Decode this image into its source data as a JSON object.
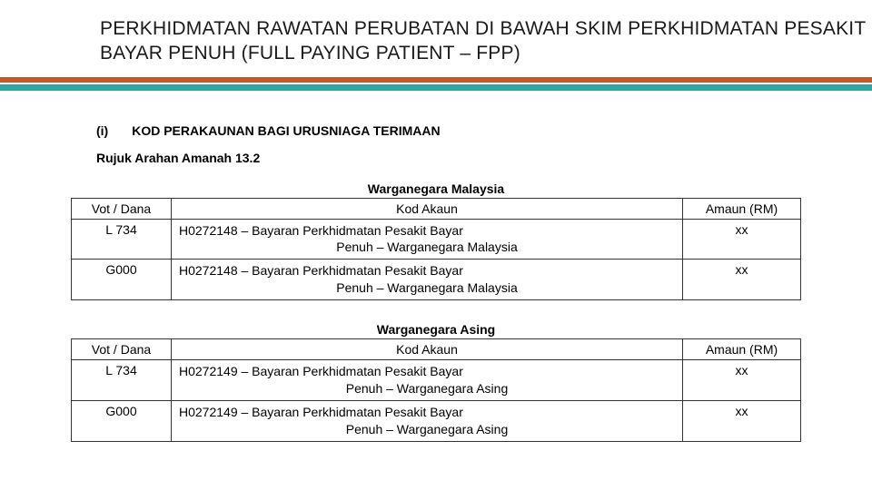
{
  "header": {
    "title": "PERKHIDMATAN RAWATAN PERUBATAN DI BAWAH SKIM PERKHIDMATAN PESAKIT BAYAR PENUH (FULL PAYING PATIENT – FPP)"
  },
  "colors": {
    "rule_orange": "#c05a2a",
    "rule_teal": "#2fa6a0",
    "text": "#000000",
    "border": "#333333",
    "background": "#ffffff"
  },
  "section": {
    "number": "(i)",
    "title": "KOD PERAKAUNAN BAGI URUSNIAGA TERIMAAN",
    "rujuk": "Rujuk Arahan Amanah 13.2"
  },
  "tables": [
    {
      "caption": "Warganegara Malaysia",
      "columns": [
        "Vot / Dana",
        "Kod Akaun",
        "Amaun (RM)"
      ],
      "rows": [
        {
          "vot": "L 734",
          "akaun_l1": "H0272148 – Bayaran Perkhidmatan Pesakit Bayar",
          "akaun_l2": "Penuh – Warganegara Malaysia",
          "amaun": "xx"
        },
        {
          "vot": "G000",
          "akaun_l1": "H0272148 – Bayaran Perkhidmatan Pesakit Bayar",
          "akaun_l2": "Penuh – Warganegara Malaysia",
          "amaun": "xx"
        }
      ]
    },
    {
      "caption": "Warganegara Asing",
      "columns": [
        "Vot / Dana",
        "Kod Akaun",
        "Amaun (RM)"
      ],
      "rows": [
        {
          "vot": "L 734",
          "akaun_l1": "H0272149 – Bayaran Perkhidmatan Pesakit Bayar",
          "akaun_l2": "Penuh – Warganegara Asing",
          "amaun": "xx"
        },
        {
          "vot": "G000",
          "akaun_l1": "H0272149 – Bayaran Perkhidmatan Pesakit Bayar",
          "akaun_l2": "Penuh – Warganegara Asing",
          "amaun": "xx"
        }
      ]
    }
  ]
}
